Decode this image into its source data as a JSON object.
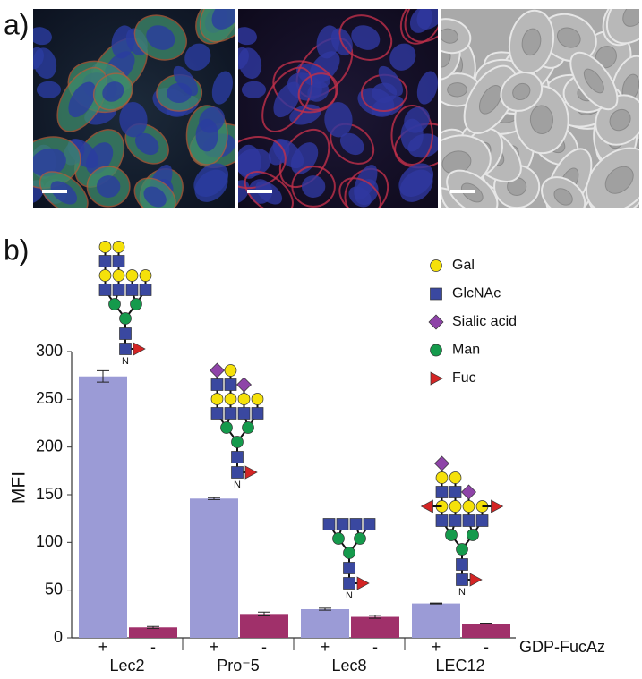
{
  "panel_labels": {
    "a": "a)",
    "b": "b)"
  },
  "glycan_legend": [
    "Gal",
    "GlcNAc",
    "Sialic acid",
    "Man",
    "Fuc"
  ],
  "glycan_root_label": "N",
  "chart_data": {
    "type": "bar",
    "y_label": "MFI",
    "x_label": "GDP-FucAz",
    "categories": [
      "Lec2",
      "Pro⁻5",
      "Lec8",
      "LEC12"
    ],
    "series": [
      {
        "name": "+",
        "color": "#9b9bd6",
        "values": [
          274,
          146,
          30,
          36
        ],
        "errors": [
          6,
          1,
          1,
          0.5
        ]
      },
      {
        "name": "-",
        "color": "#a0306a",
        "values": [
          11,
          25,
          22,
          15
        ],
        "errors": [
          1,
          2,
          1.5,
          0.5
        ]
      }
    ],
    "ylim": [
      0,
      300
    ],
    "yticks": [
      0,
      50,
      100,
      150,
      200,
      250,
      300
    ]
  }
}
